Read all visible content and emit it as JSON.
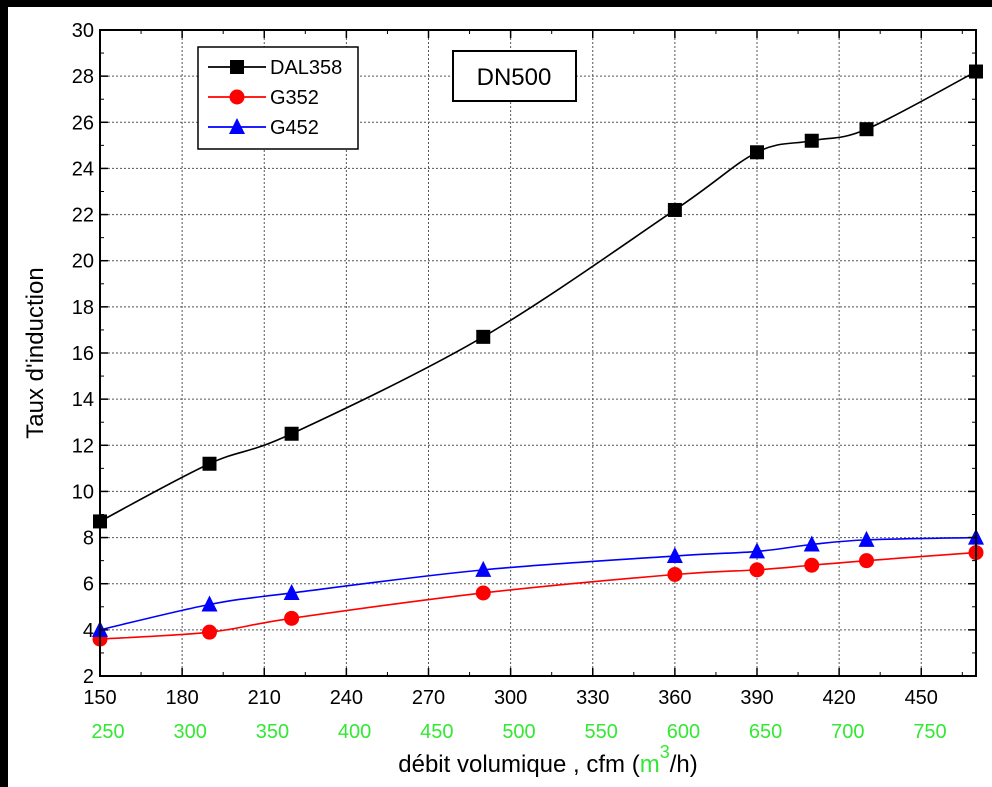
{
  "chart_data": {
    "type": "line",
    "annotation": "DN500",
    "ylabel": "Taux d'induction",
    "xlabel_parts": {
      "main": "débit volumique , cfm (",
      "unit": "m",
      "sup": "3",
      "tail": "/h)"
    },
    "xlim": [
      150,
      470
    ],
    "ylim": [
      2,
      30
    ],
    "x_ticks": [
      150,
      180,
      210,
      240,
      270,
      300,
      330,
      360,
      390,
      420,
      450
    ],
    "x_tick_labels": [
      "150",
      "180",
      "210",
      "240",
      "270",
      "300",
      "330",
      "360",
      "390",
      "420",
      "450"
    ],
    "y_ticks": [
      2,
      4,
      6,
      8,
      10,
      12,
      14,
      16,
      18,
      20,
      22,
      24,
      26,
      28,
      30
    ],
    "y_tick_labels": [
      "2",
      "4",
      "6",
      "8",
      "10",
      "12",
      "14",
      "16",
      "18",
      "20",
      "22",
      "24",
      "26",
      "28",
      "30"
    ],
    "secondary_x": {
      "label_values": [
        250,
        300,
        350,
        400,
        450,
        500,
        550,
        600,
        650,
        700,
        750
      ],
      "labels": [
        "250",
        "300",
        "350",
        "400",
        "450",
        "500",
        "550",
        "600",
        "650",
        "700",
        "750"
      ],
      "color": "#33e833"
    },
    "grid": true,
    "legend_position": "top-left",
    "series": [
      {
        "name": "DAL358",
        "color": "#000000",
        "marker": "square",
        "x": [
          150,
          190,
          220,
          290,
          360,
          390,
          410,
          430,
          470
        ],
        "y": [
          8.7,
          11.2,
          12.5,
          16.7,
          22.2,
          24.7,
          25.2,
          25.7,
          28.2
        ]
      },
      {
        "name": "G352",
        "color": "#ff0000",
        "marker": "circle",
        "x": [
          150,
          190,
          220,
          290,
          360,
          390,
          410,
          430,
          470
        ],
        "y": [
          3.6,
          3.9,
          4.5,
          5.6,
          6.4,
          6.6,
          6.8,
          7.0,
          7.35
        ]
      },
      {
        "name": "G452",
        "color": "#0000ff",
        "marker": "triangle",
        "x": [
          150,
          190,
          220,
          290,
          360,
          390,
          410,
          430,
          470
        ],
        "y": [
          4.0,
          5.1,
          5.6,
          6.6,
          7.2,
          7.4,
          7.7,
          7.9,
          8.0
        ]
      }
    ]
  }
}
